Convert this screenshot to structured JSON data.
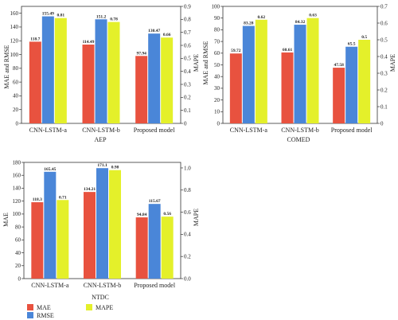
{
  "chart_data": [
    {
      "type": "bar",
      "xlabel": "AEP",
      "ylabel": "MAE and RMSE",
      "y2label": "MAPE",
      "ylim": [
        0,
        170
      ],
      "y2lim": [
        0,
        0.9
      ],
      "yticks": [
        0,
        20,
        40,
        60,
        80,
        100,
        120,
        140,
        160
      ],
      "y2ticks": [
        0,
        0.1,
        0.2,
        0.3,
        0.4,
        0.5,
        0.6,
        0.7,
        0.8,
        0.9
      ],
      "categories": [
        "CNN-LSTM-a",
        "CNN-LSTM-b",
        "Proposed model"
      ],
      "series": [
        {
          "name": "MAE",
          "values": [
            118.7,
            114.49,
            97.94
          ],
          "labels": [
            "118.7",
            "114.49",
            "97.94"
          ],
          "axis": "left",
          "color": "#e8523f"
        },
        {
          "name": "RMSE",
          "values": [
            155.49,
            151.2,
            130.47
          ],
          "labels": [
            "155.49",
            "151.2",
            "130.47"
          ],
          "axis": "left",
          "color": "#4a86d8"
        },
        {
          "name": "MAPE",
          "values": [
            0.81,
            0.78,
            0.66
          ],
          "labels": [
            "0.81",
            "0.78",
            "0.66"
          ],
          "axis": "right",
          "color": "#e4f02a"
        }
      ]
    },
    {
      "type": "bar",
      "xlabel": "COMED",
      "ylabel": "MAE and RMSE",
      "y2label": "MAPE",
      "ylim": [
        0,
        100
      ],
      "y2lim": [
        0,
        0.7
      ],
      "yticks": [
        0,
        10,
        20,
        30,
        40,
        50,
        60,
        70,
        80,
        90,
        100
      ],
      "y2ticks": [
        0,
        0.1,
        0.2,
        0.3,
        0.4,
        0.5,
        0.6,
        0.7
      ],
      "categories": [
        "CNN-LSTM-a",
        "CNN-LSTM-b",
        "Proposed model"
      ],
      "series": [
        {
          "name": "MAE",
          "values": [
            59.72,
            60.61,
            47.58
          ],
          "labels": [
            "59.72",
            "60.61",
            "47.58"
          ],
          "axis": "left",
          "color": "#e8523f"
        },
        {
          "name": "RMSE",
          "values": [
            83.28,
            84.32,
            65.5
          ],
          "labels": [
            "83.28",
            "84.32",
            "65.5"
          ],
          "axis": "left",
          "color": "#4a86d8"
        },
        {
          "name": "MAPE",
          "values": [
            0.62,
            0.63,
            0.5
          ],
          "labels": [
            "0.62",
            "0.63",
            "0.5"
          ],
          "axis": "right",
          "color": "#e4f02a"
        }
      ]
    },
    {
      "type": "bar",
      "xlabel": "NTDC",
      "ylabel": "MAE",
      "y2label": "MAPE",
      "ylim": [
        0,
        180
      ],
      "y2lim": [
        0,
        1.05
      ],
      "yticks": [
        0,
        20,
        40,
        60,
        80,
        100,
        120,
        140,
        160,
        180
      ],
      "y2ticks": [
        0,
        0.2,
        0.4,
        0.6,
        0.8,
        1.0
      ],
      "y2ticklabels": [
        "0.0",
        "0.2",
        "0.4",
        "0.6",
        "0.8",
        "1.0"
      ],
      "categories": [
        "CNN-LSTM-a",
        "CNN-LSTM-b",
        "Proposed model"
      ],
      "series": [
        {
          "name": "MAE",
          "values": [
            118.3,
            134.21,
            94.84
          ],
          "labels": [
            "118.3",
            "134.21",
            "94.84"
          ],
          "axis": "left",
          "color": "#e8523f"
        },
        {
          "name": "RMSE",
          "values": [
            165.45,
            171.1,
            115.67
          ],
          "labels": [
            "165.45",
            "171.1",
            "115.67"
          ],
          "axis": "left",
          "color": "#4a86d8"
        },
        {
          "name": "MAPE",
          "values": [
            0.71,
            0.98,
            0.56
          ],
          "labels": [
            "0.71",
            "0.98",
            "0.56"
          ],
          "axis": "right",
          "color": "#e4f02a"
        }
      ]
    }
  ],
  "legend": {
    "items": [
      {
        "name": "MAE",
        "color": "#e8523f"
      },
      {
        "name": "RMSE",
        "color": "#4a86d8"
      },
      {
        "name": "MAPE",
        "color": "#e4f02a"
      }
    ]
  }
}
